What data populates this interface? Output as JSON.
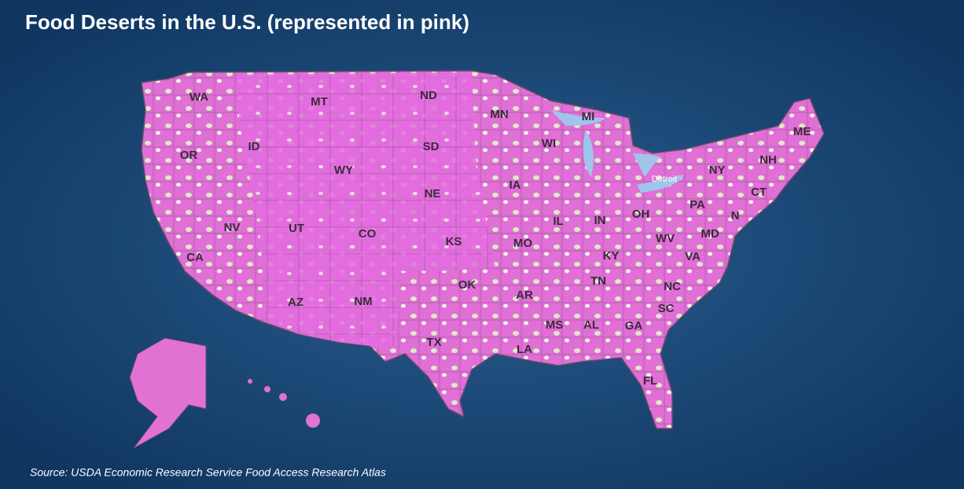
{
  "title": "Food Deserts in the U.S. (represented in pink)",
  "source": "Source: USDA Economic Research Service Food Access Research Atlas",
  "states": [
    "WA",
    "MT",
    "ND",
    "MN",
    "MI",
    "ME",
    "OR",
    "ID",
    "SD",
    "WI",
    "WY",
    "NY",
    "NH",
    "IA",
    "NE",
    "CT",
    "PA",
    "NV",
    "UT",
    "CO",
    "KS",
    "MO",
    "IL",
    "IN",
    "OH",
    "N",
    "MD",
    "WV",
    "CA",
    "KY",
    "VA",
    "TN",
    "NC",
    "OK",
    "AR",
    "AZ",
    "NM",
    "SC",
    "MS",
    "AL",
    "GA",
    "TX",
    "LA",
    "FL"
  ],
  "cities": [
    "Detroit"
  ]
}
